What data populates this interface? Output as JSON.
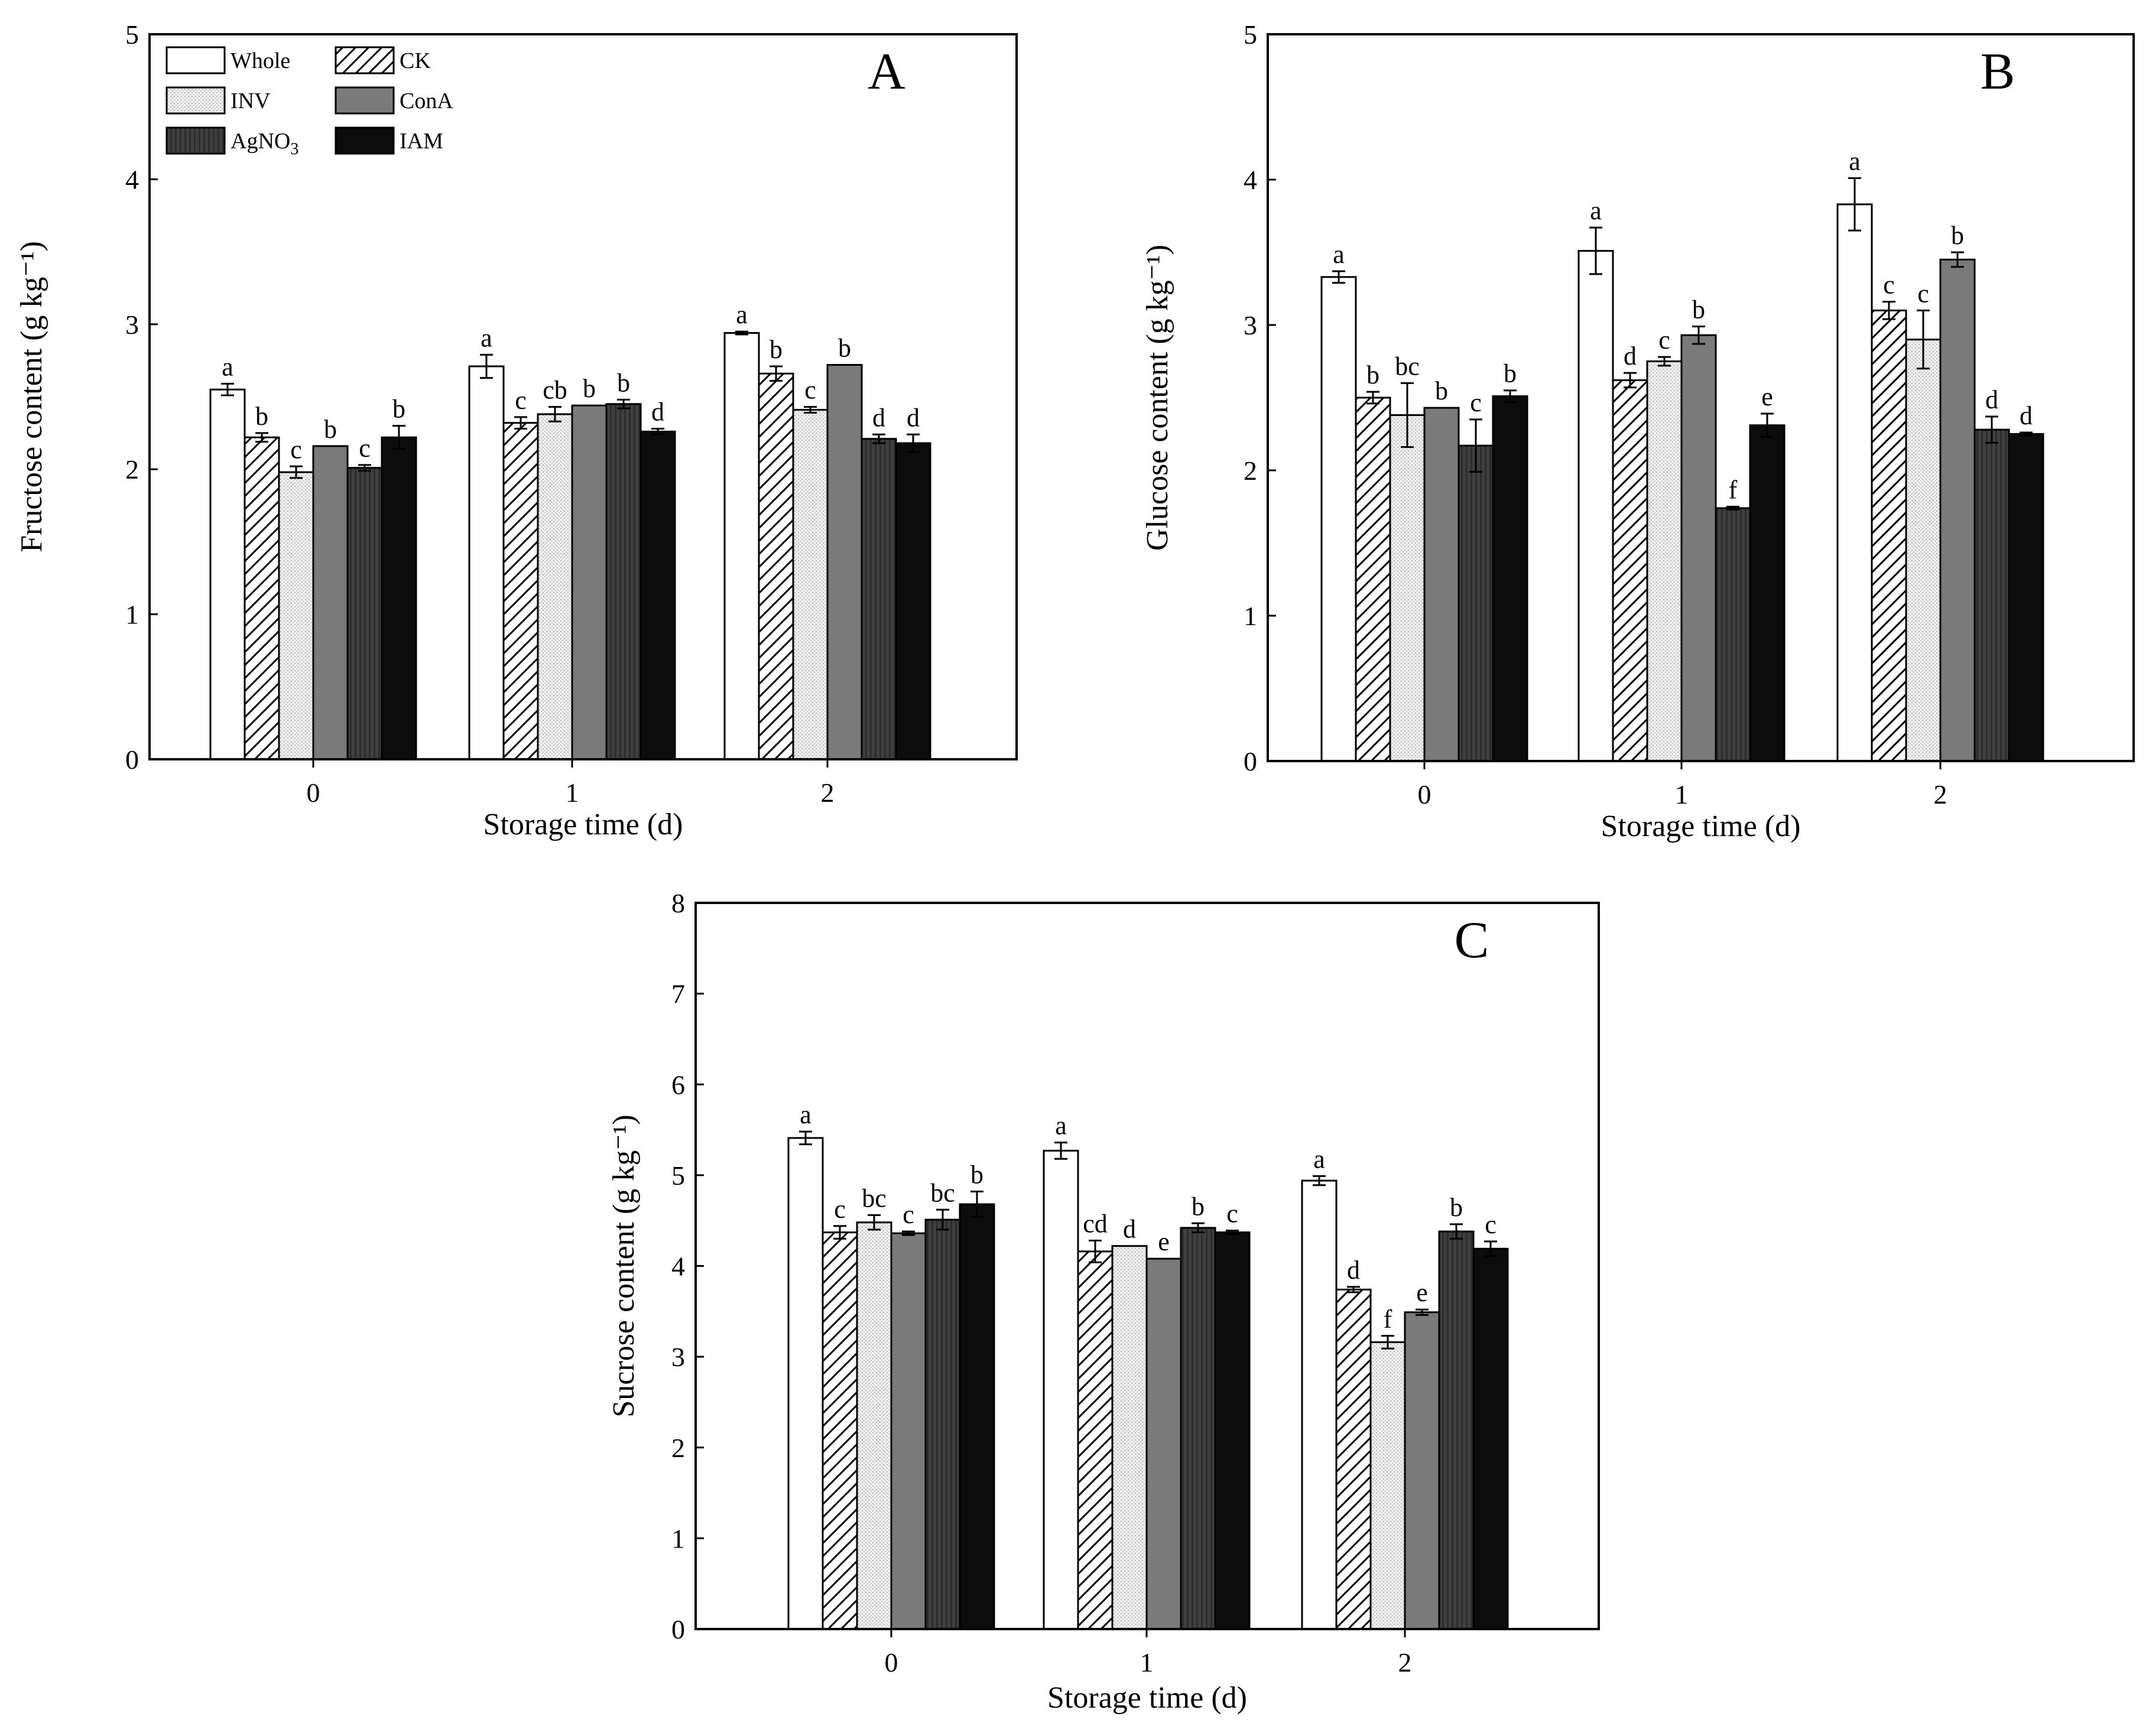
{
  "chart_data": [
    {
      "type": "bar",
      "panel": "A",
      "title": "",
      "xlabel": "Storage time (d)",
      "ylabel": "Fructose content (g kg⁻¹)",
      "ylim": [
        0,
        5
      ],
      "yticks": [
        0,
        1,
        2,
        3,
        4,
        5
      ],
      "categories": [
        "0",
        "1",
        "2"
      ],
      "legend": "top-left",
      "series": [
        {
          "name": "Whole",
          "values": [
            2.55,
            2.71,
            2.94
          ],
          "errors": [
            0.04,
            0.08,
            0.01
          ],
          "letters": [
            "a",
            "a",
            "a"
          ]
        },
        {
          "name": "CK",
          "values": [
            2.22,
            2.32,
            2.66
          ],
          "errors": [
            0.03,
            0.04,
            0.05
          ],
          "letters": [
            "b",
            "c",
            "b"
          ]
        },
        {
          "name": "INV",
          "values": [
            1.98,
            2.38,
            2.41
          ],
          "errors": [
            0.04,
            0.05,
            0.02
          ],
          "letters": [
            "c",
            "cb",
            "c"
          ]
        },
        {
          "name": "ConA",
          "values": [
            2.16,
            2.44,
            2.72
          ],
          "errors": [
            0,
            0,
            0
          ],
          "letters": [
            "b",
            "b",
            "b"
          ]
        },
        {
          "name": "AgNO3",
          "values": [
            2.01,
            2.45,
            2.21
          ],
          "errors": [
            0.02,
            0.03,
            0.03
          ],
          "letters": [
            "c",
            "b",
            "d"
          ]
        },
        {
          "name": "IAM",
          "values": [
            2.22,
            2.26,
            2.18
          ],
          "errors": [
            0.08,
            0.02,
            0.06
          ],
          "letters": [
            "b",
            "d",
            "d"
          ]
        }
      ]
    },
    {
      "type": "bar",
      "panel": "B",
      "title": "",
      "xlabel": "Storage time (d)",
      "ylabel": "Glucose content (g kg⁻¹)",
      "ylim": [
        0,
        5
      ],
      "yticks": [
        0,
        1,
        2,
        3,
        4,
        5
      ],
      "categories": [
        "0",
        "1",
        "2"
      ],
      "series": [
        {
          "name": "Whole",
          "values": [
            3.33,
            3.51,
            3.83
          ],
          "errors": [
            0.04,
            0.16,
            0.18
          ],
          "letters": [
            "a",
            "a",
            "a"
          ]
        },
        {
          "name": "CK",
          "values": [
            2.5,
            2.62,
            3.1
          ],
          "errors": [
            0.04,
            0.05,
            0.06
          ],
          "letters": [
            "b",
            "d",
            "c"
          ]
        },
        {
          "name": "INV",
          "values": [
            2.38,
            2.75,
            2.9
          ],
          "errors": [
            0.22,
            0.03,
            0.2
          ],
          "letters": [
            "bc",
            "c",
            "c"
          ]
        },
        {
          "name": "ConA",
          "values": [
            2.43,
            2.93,
            3.45
          ],
          "errors": [
            0,
            0.06,
            0.05
          ],
          "letters": [
            "b",
            "b",
            "b"
          ]
        },
        {
          "name": "AgNO3",
          "values": [
            2.17,
            1.74,
            2.28
          ],
          "errors": [
            0.18,
            0.01,
            0.09
          ],
          "letters": [
            "c",
            "f",
            "d"
          ]
        },
        {
          "name": "IAM",
          "values": [
            2.51,
            2.31,
            2.25
          ],
          "errors": [
            0.04,
            0.08,
            0.01
          ],
          "letters": [
            "b",
            "e",
            "d"
          ]
        }
      ]
    },
    {
      "type": "bar",
      "panel": "C",
      "title": "",
      "xlabel": "Storage time (d)",
      "ylabel": "Sucrose content (g kg⁻¹)",
      "ylim": [
        0,
        8
      ],
      "yticks": [
        0,
        1,
        2,
        3,
        4,
        5,
        6,
        7,
        8
      ],
      "categories": [
        "0",
        "1",
        "2"
      ],
      "series": [
        {
          "name": "Whole",
          "values": [
            5.41,
            5.27,
            4.94
          ],
          "errors": [
            0.07,
            0.09,
            0.05
          ],
          "letters": [
            "a",
            "a",
            "a"
          ]
        },
        {
          "name": "CK",
          "values": [
            4.37,
            4.16,
            3.74
          ],
          "errors": [
            0.07,
            0.12,
            0.03
          ],
          "letters": [
            "c",
            "cd",
            "d"
          ]
        },
        {
          "name": "INV",
          "values": [
            4.48,
            4.22,
            3.16
          ],
          "errors": [
            0.08,
            0,
            0.07
          ],
          "letters": [
            "bc",
            "d",
            "f"
          ]
        },
        {
          "name": "ConA",
          "values": [
            4.36,
            4.08,
            3.49
          ],
          "errors": [
            0.02,
            0,
            0.03
          ],
          "letters": [
            "c",
            "e",
            "e"
          ]
        },
        {
          "name": "AgNO3",
          "values": [
            4.51,
            4.42,
            4.38
          ],
          "errors": [
            0.11,
            0.05,
            0.08
          ],
          "letters": [
            "bc",
            "b",
            "b"
          ]
        },
        {
          "name": "IAM",
          "values": [
            4.68,
            4.37,
            4.19
          ],
          "errors": [
            0.14,
            0.02,
            0.08
          ],
          "letters": [
            "b",
            "c",
            "c"
          ]
        }
      ]
    }
  ],
  "legend": {
    "items": [
      {
        "key": "Whole",
        "label": "Whole"
      },
      {
        "key": "CK",
        "label": "CK"
      },
      {
        "key": "INV",
        "label": "INV"
      },
      {
        "key": "ConA",
        "label": "ConA"
      },
      {
        "key": "AgNO3",
        "label": "AgNO",
        "sub": "3"
      },
      {
        "key": "IAM",
        "label": "IAM"
      }
    ]
  }
}
